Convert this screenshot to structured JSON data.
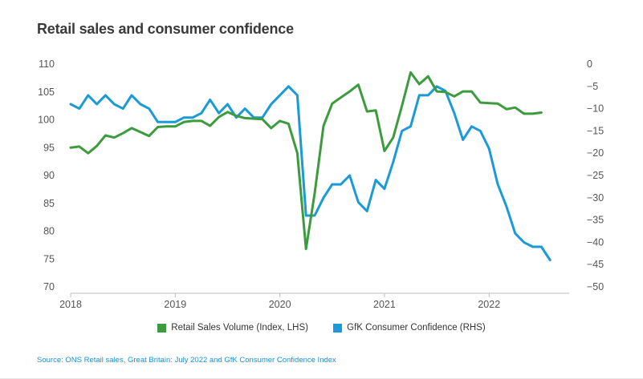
{
  "title": "Retail sales and consumer confidence",
  "source": "Source: ONS Retail sales, Great Britain: July 2022 and GfK Consumer Confidence Index",
  "colors": {
    "retail": "#3c9b3c",
    "gfk": "#1a9ad6"
  },
  "chart_data": {
    "type": "line",
    "title": "Retail sales and consumer confidence",
    "x_ticks": [
      "2018",
      "2019",
      "2020",
      "2021",
      "2022"
    ],
    "x_range": [
      2018.0,
      2022.75
    ],
    "y_left": {
      "range": [
        70,
        110
      ],
      "ticks": [
        70,
        75,
        80,
        85,
        90,
        95,
        100,
        105,
        110
      ]
    },
    "y_right": {
      "range": [
        -50,
        0
      ],
      "ticks": [
        0,
        -5,
        -10,
        -15,
        -20,
        -25,
        -30,
        -35,
        -40,
        -45,
        -50
      ]
    },
    "legend_position": "bottom",
    "grid": false,
    "series": [
      {
        "name": "Retail Sales Volume (Index, LHS)",
        "axis": "left",
        "x": [
          2018.0,
          2018.083,
          2018.167,
          2018.25,
          2018.333,
          2018.417,
          2018.5,
          2018.583,
          2018.667,
          2018.75,
          2018.833,
          2018.917,
          2019.0,
          2019.083,
          2019.167,
          2019.25,
          2019.333,
          2019.417,
          2019.5,
          2019.583,
          2019.667,
          2019.75,
          2019.833,
          2019.917,
          2020.0,
          2020.083,
          2020.167,
          2020.25,
          2020.333,
          2020.417,
          2020.5,
          2020.583,
          2020.667,
          2020.75,
          2020.833,
          2020.917,
          2021.0,
          2021.083,
          2021.167,
          2021.25,
          2021.333,
          2021.417,
          2021.5,
          2021.583,
          2021.667,
          2021.75,
          2021.833,
          2021.917,
          2022.0,
          2022.083,
          2022.167,
          2022.25,
          2022.333,
          2022.417,
          2022.5
        ],
        "values": [
          95.0,
          95.2,
          94.0,
          95.3,
          97.2,
          96.8,
          97.6,
          98.5,
          97.8,
          97.1,
          98.7,
          98.8,
          98.8,
          99.6,
          99.8,
          99.8,
          98.9,
          100.5,
          101.4,
          100.7,
          100.3,
          100.2,
          100.1,
          98.5,
          99.8,
          99.3,
          94.0,
          76.8,
          86.8,
          98.9,
          102.9,
          104.0,
          105.1,
          106.3,
          101.5,
          101.7,
          94.4,
          96.8,
          102.5,
          108.5,
          106.4,
          107.8,
          105.1,
          105.0,
          104.2,
          105.1,
          105.1,
          103.1,
          103.0,
          102.9,
          101.9,
          102.2,
          101.1,
          101.1,
          101.3
        ]
      },
      {
        "name": "GfK Consumer Confidence (RHS)",
        "axis": "right",
        "x": [
          2018.0,
          2018.083,
          2018.167,
          2018.25,
          2018.333,
          2018.417,
          2018.5,
          2018.583,
          2018.667,
          2018.75,
          2018.833,
          2018.917,
          2019.0,
          2019.083,
          2019.167,
          2019.25,
          2019.333,
          2019.417,
          2019.5,
          2019.583,
          2019.667,
          2019.75,
          2019.833,
          2019.917,
          2020.0,
          2020.083,
          2020.167,
          2020.25,
          2020.333,
          2020.417,
          2020.5,
          2020.583,
          2020.667,
          2020.75,
          2020.833,
          2020.917,
          2021.0,
          2021.083,
          2021.167,
          2021.25,
          2021.333,
          2021.417,
          2021.5,
          2021.583,
          2021.667,
          2021.75,
          2021.833,
          2021.917,
          2022.0,
          2022.083,
          2022.167,
          2022.25,
          2022.333,
          2022.417,
          2022.5,
          2022.583
        ],
        "values": [
          -9,
          -10,
          -7,
          -9,
          -7,
          -9,
          -10,
          -7,
          -9,
          -10,
          -13,
          -13,
          -13,
          -12,
          -12,
          -11,
          -8,
          -11,
          -9,
          -12,
          -10,
          -12,
          -12,
          -9,
          -7,
          -5,
          -7,
          -34,
          -34,
          -30,
          -27,
          -27,
          -25,
          -31,
          -33,
          -26,
          -28,
          -22,
          -15,
          -14,
          -7,
          -7,
          -5,
          -6,
          -11,
          -17,
          -14,
          -15,
          -19,
          -27,
          -32,
          -38,
          -40,
          -41,
          -41,
          -44
        ]
      }
    ]
  }
}
